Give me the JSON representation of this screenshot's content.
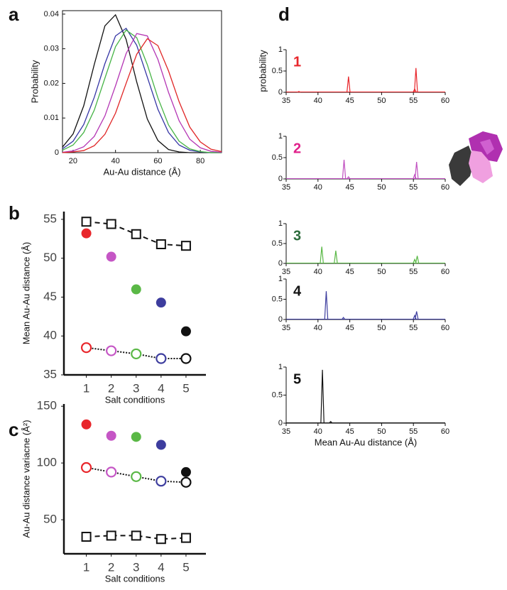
{
  "chart_data": [
    {
      "type": "line",
      "panel_label": "a",
      "ylabel": "Probability",
      "xlabel": "Au-Au distance (Å)",
      "x": [
        15,
        20,
        25,
        30,
        35,
        40,
        45,
        50,
        55,
        60,
        65,
        70,
        75,
        80,
        85,
        90
      ],
      "xlim": [
        15,
        90
      ],
      "xticks": [
        20,
        40,
        60,
        80
      ],
      "ylim": [
        0,
        0.041
      ],
      "yticks": [
        0,
        0.01,
        0.02,
        0.03,
        0.04
      ],
      "series": [
        {
          "color": "#111111",
          "values": [
            0.0016,
            0.0054,
            0.0135,
            0.0255,
            0.0366,
            0.0398,
            0.0327,
            0.0204,
            0.0097,
            0.0035,
            0.0009,
            0.0002,
            0,
            0,
            0,
            0
          ]
        },
        {
          "color": "#3535a5",
          "values": [
            0.0011,
            0.0033,
            0.0081,
            0.016,
            0.0257,
            0.0337,
            0.0359,
            0.031,
            0.0218,
            0.0125,
            0.0058,
            0.0022,
            0.0007,
            0.0002,
            0,
            0
          ]
        },
        {
          "color": "#46b446",
          "values": [
            0.0007,
            0.0022,
            0.0058,
            0.0123,
            0.0215,
            0.0306,
            0.0354,
            0.0332,
            0.0254,
            0.0158,
            0.008,
            0.0033,
            0.0011,
            0.0003,
            0,
            0
          ]
        },
        {
          "color": "#b435b4",
          "values": [
            0.0001,
            0.0005,
            0.0017,
            0.0047,
            0.0106,
            0.0193,
            0.0286,
            0.0344,
            0.0337,
            0.0269,
            0.0174,
            0.0092,
            0.0039,
            0.0014,
            0.0004,
            0.0001
          ]
        },
        {
          "color": "#e02525",
          "values": [
            0,
            0.0002,
            0.0006,
            0.002,
            0.0053,
            0.0114,
            0.02,
            0.0284,
            0.0329,
            0.0309,
            0.0236,
            0.0147,
            0.0074,
            0.0031,
            0.001,
            0.0003
          ]
        }
      ]
    },
    {
      "type": "scatter",
      "panel_label": "b",
      "ylabel": "Mean Au-Au distance (Å)",
      "xlabel": "Salt conditions",
      "x": [
        1,
        2,
        3,
        4,
        5
      ],
      "xlim": [
        0.1,
        5.8
      ],
      "xticks": [
        1,
        2,
        3,
        4,
        5
      ],
      "ylim": [
        35,
        56
      ],
      "yticks": [
        35,
        40,
        45,
        50,
        55
      ],
      "colors": [
        "#e8262b",
        "#c556c5",
        "#5ab846",
        "#3d3d9e",
        "#111111"
      ],
      "series": [
        {
          "marker": "circle",
          "filled": true,
          "values": [
            53.2,
            50.2,
            46,
            44.3,
            40.6
          ]
        },
        {
          "marker": "square",
          "line": "dashed",
          "color": "#111111",
          "values": [
            54.7,
            54.4,
            53.1,
            51.8,
            51.6
          ]
        },
        {
          "marker": "circle",
          "line": "dotted",
          "values": [
            38.5,
            38.1,
            37.7,
            37.1,
            37.1
          ]
        }
      ]
    },
    {
      "type": "scatter",
      "panel_label": "c",
      "ylabel": "Au-Au distance variacne (Å²)",
      "xlabel": "Salt conditions",
      "x": [
        1,
        2,
        3,
        4,
        5
      ],
      "xlim": [
        0.1,
        5.8
      ],
      "xticks": [
        1,
        2,
        3,
        4,
        5
      ],
      "ylim": [
        20,
        152
      ],
      "yticks": [
        50,
        100,
        150
      ],
      "colors": [
        "#e8262b",
        "#c556c5",
        "#5ab846",
        "#3d3d9e",
        "#111111"
      ],
      "series": [
        {
          "marker": "circle",
          "filled": true,
          "values": [
            134,
            124,
            123,
            116,
            92
          ]
        },
        {
          "marker": "circle",
          "line": "dotted",
          "values": [
            96,
            92,
            88,
            84,
            83
          ]
        },
        {
          "marker": "square",
          "line": "dashed",
          "color": "#111111",
          "values": [
            35,
            36,
            36,
            33,
            34
          ]
        }
      ]
    },
    {
      "type": "spike",
      "panel_label": "d",
      "ylabel": "probability",
      "label": "1",
      "label_color": "#e8262b",
      "color": "#e8262b",
      "x": [
        37,
        44.8,
        55.2,
        55.4
      ],
      "values": [
        0.02,
        0.37,
        0.08,
        0.57
      ],
      "xlim": [
        35,
        60
      ],
      "xticks": [
        35,
        40,
        45,
        50,
        55,
        60
      ],
      "ylim": [
        0,
        1
      ],
      "yticks": [
        0,
        0.5,
        1
      ]
    },
    {
      "type": "spike",
      "label": "2",
      "label_color": "#e0208a",
      "color": "#c050c0",
      "x": [
        44.1,
        44.8,
        55.2,
        55.5
      ],
      "values": [
        0.45,
        0.05,
        0.1,
        0.4
      ],
      "xlim": [
        35,
        60
      ],
      "xticks": [
        35,
        40,
        45,
        50,
        55,
        60
      ],
      "ylim": [
        0,
        1
      ],
      "yticks": [
        0,
        0.5,
        1
      ]
    },
    {
      "type": "spike",
      "label": "3",
      "label_color": "#2a6a3a",
      "color": "#5ab846",
      "x": [
        40.6,
        42.8,
        55.2,
        55.6
      ],
      "values": [
        0.42,
        0.32,
        0.1,
        0.19
      ],
      "xlim": [
        35,
        60
      ],
      "xticks": [
        35,
        40,
        45,
        50,
        55,
        60
      ],
      "ylim": [
        0,
        1
      ],
      "yticks": [
        0,
        0.5,
        1
      ]
    },
    {
      "type": "spike",
      "label": "4",
      "label_color": "#111111",
      "color": "#3d3d9e",
      "x": [
        41.3,
        44,
        55.2,
        55.5
      ],
      "values": [
        0.7,
        0.05,
        0.1,
        0.2
      ],
      "xlim": [
        35,
        60
      ],
      "xticks": [
        35,
        40,
        45,
        50,
        55,
        60
      ],
      "ylim": [
        0,
        1
      ],
      "yticks": [
        0,
        0.5,
        1
      ]
    },
    {
      "type": "spike",
      "label": "5",
      "label_color": "#111111",
      "color": "#111111",
      "xlabel": "Mean Au-Au distance (Å)",
      "x": [
        40.7,
        42
      ],
      "values": [
        0.95,
        0.03
      ],
      "xlim": [
        35,
        60
      ],
      "xticks": [
        35,
        40,
        45,
        50,
        55,
        60
      ],
      "ylim": [
        0,
        1
      ],
      "yticks": [
        0,
        0.5,
        1
      ]
    }
  ]
}
